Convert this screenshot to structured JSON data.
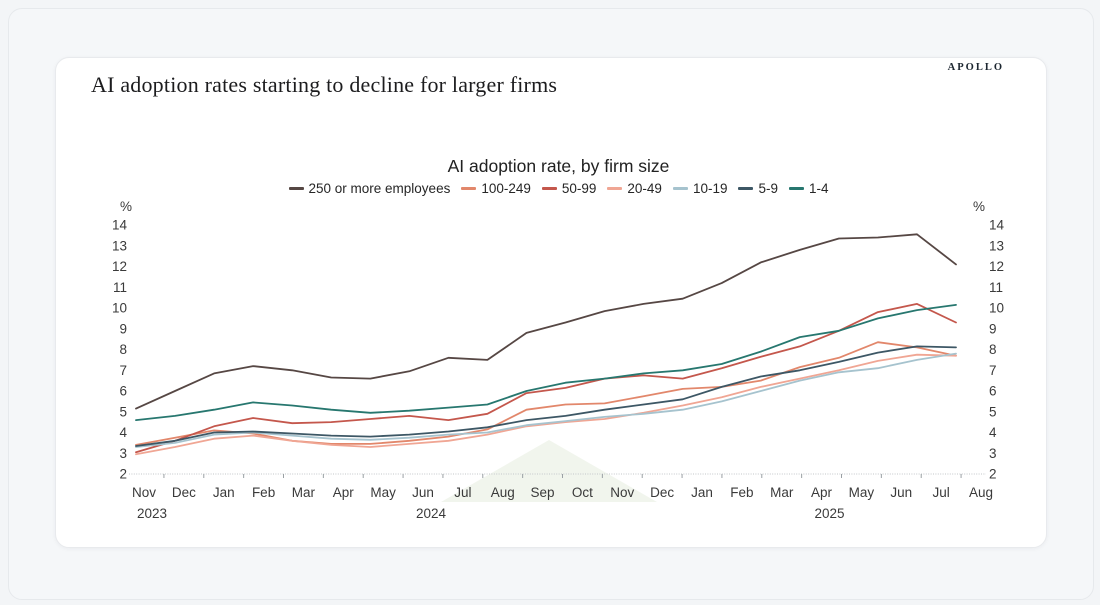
{
  "page": {
    "brand": "APOLLO",
    "headline": "AI adoption rates starting to decline for larger firms"
  },
  "chart_data": {
    "type": "line",
    "title": "AI adoption rate, by firm size",
    "y_unit": "%",
    "ylim": [
      2,
      14
    ],
    "ytick_step": 1,
    "grid": false,
    "legend_position": "top-center",
    "x_axis": {
      "months": [
        "Nov",
        "Dec",
        "Jan",
        "Feb",
        "Mar",
        "Apr",
        "May",
        "Jun",
        "Jul",
        "Aug",
        "Sep",
        "Oct",
        "Nov",
        "Dec",
        "Jan",
        "Feb",
        "Mar",
        "Apr",
        "May",
        "Jun",
        "Jul",
        "Aug"
      ],
      "years": [
        {
          "label": "2023",
          "month_index": 0
        },
        {
          "label": "2024",
          "month_index": 7
        },
        {
          "label": "2025",
          "month_index": 17
        }
      ]
    },
    "series": [
      {
        "name": "250 or more employees",
        "color": "#564744",
        "values": [
          5.15,
          6.0,
          6.85,
          7.2,
          7.0,
          6.65,
          6.6,
          6.95,
          7.6,
          7.5,
          8.8,
          9.3,
          9.85,
          10.2,
          10.45,
          11.2,
          12.2,
          12.8,
          13.35,
          13.4,
          13.55,
          12.1
        ]
      },
      {
        "name": "100-249",
        "color": "#e2876b",
        "values": [
          3.4,
          3.75,
          4.1,
          3.95,
          3.6,
          3.45,
          3.45,
          3.6,
          3.8,
          4.15,
          5.1,
          5.35,
          5.4,
          5.75,
          6.1,
          6.2,
          6.5,
          7.15,
          7.6,
          8.35,
          8.1,
          7.7
        ]
      },
      {
        "name": "50-99",
        "color": "#c4574c",
        "values": [
          3.05,
          3.6,
          4.3,
          4.7,
          4.45,
          4.5,
          4.65,
          4.8,
          4.6,
          4.9,
          5.9,
          6.15,
          6.6,
          6.75,
          6.6,
          7.1,
          7.65,
          8.15,
          8.9,
          9.8,
          10.2,
          9.3
        ]
      },
      {
        "name": "20-49",
        "color": "#f0a694",
        "values": [
          2.95,
          3.3,
          3.7,
          3.85,
          3.6,
          3.4,
          3.3,
          3.45,
          3.6,
          3.9,
          4.3,
          4.5,
          4.65,
          4.95,
          5.3,
          5.7,
          6.2,
          6.6,
          7.0,
          7.45,
          7.75,
          7.7
        ]
      },
      {
        "name": "10-19",
        "color": "#a6c3ce",
        "values": [
          3.3,
          3.5,
          3.9,
          4.0,
          3.85,
          3.7,
          3.65,
          3.75,
          3.9,
          4.0,
          4.35,
          4.55,
          4.75,
          4.9,
          5.1,
          5.5,
          6.0,
          6.5,
          6.9,
          7.1,
          7.5,
          7.8
        ]
      },
      {
        "name": "5-9",
        "color": "#3d5765",
        "values": [
          3.35,
          3.6,
          4.0,
          4.05,
          3.95,
          3.85,
          3.8,
          3.9,
          4.05,
          4.25,
          4.6,
          4.8,
          5.1,
          5.35,
          5.6,
          6.2,
          6.7,
          7.0,
          7.4,
          7.85,
          8.15,
          8.1
        ]
      },
      {
        "name": "1-4",
        "color": "#27776f",
        "values": [
          4.6,
          4.8,
          5.1,
          5.45,
          5.3,
          5.1,
          4.95,
          5.05,
          5.2,
          5.35,
          6.0,
          6.4,
          6.6,
          6.85,
          7.0,
          7.3,
          7.9,
          8.6,
          8.9,
          9.5,
          9.9,
          10.15
        ]
      }
    ]
  }
}
